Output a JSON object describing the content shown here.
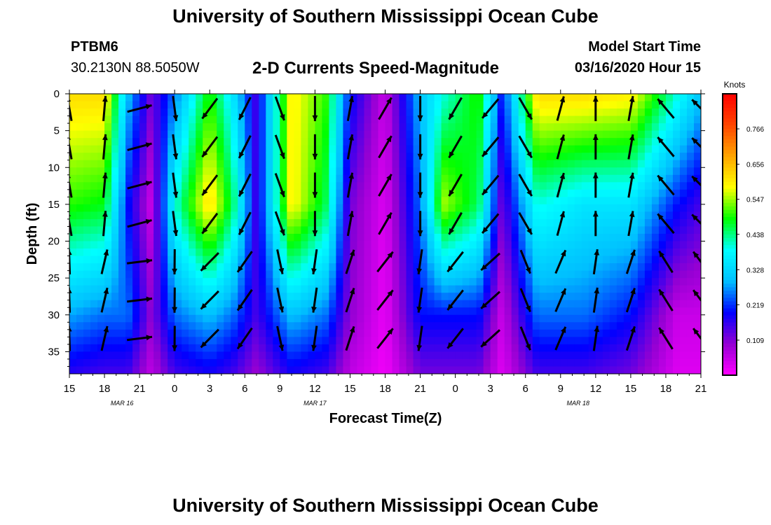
{
  "header": {
    "title": "University of Southern Mississippi Ocean Cube",
    "station_id": "PTBM6",
    "station_coords": "30.2130N 88.5050W",
    "chart_title": "2-D Currents Speed-Magnitude",
    "model_start_label": "Model Start Time",
    "model_start_time": "03/16/2020 Hour 15"
  },
  "footer": {
    "title": "University of Southern Mississippi Ocean Cube"
  },
  "chart_data": {
    "type": "heatmap",
    "title": "2-D Currents Speed-Magnitude",
    "xlabel": "Forecast Time(Z)",
    "ylabel": "Depth (ft)",
    "x_ticks": [
      "15",
      "18",
      "21",
      "0",
      "3",
      "6",
      "9",
      "12",
      "15",
      "18",
      "21",
      "0",
      "3",
      "6",
      "9",
      "12",
      "15",
      "18",
      "21"
    ],
    "x_range_hours": [
      0,
      54
    ],
    "date_labels": [
      {
        "text": "MAR 16",
        "hour": 4.5
      },
      {
        "text": "MAR 17",
        "hour": 21
      },
      {
        "text": "MAR 18",
        "hour": 43.5
      }
    ],
    "y_ticks": [
      0,
      5,
      10,
      15,
      20,
      25,
      30,
      35
    ],
    "ylim": [
      0,
      38
    ],
    "colorbar": {
      "label": "Knots",
      "ticks": [
        "0.766",
        "0.656",
        "0.547",
        "0.438",
        "0.328",
        "0.219",
        "0.109"
      ],
      "range": [
        0,
        0.875
      ],
      "colors": [
        "#ff00ff",
        "#9400d3",
        "#0000ff",
        "#00bfff",
        "#00ffff",
        "#00ff00",
        "#ffff00",
        "#ffa500",
        "#ff4500",
        "#ff0000"
      ]
    },
    "speed_profile": [
      {
        "hour": 0,
        "surface": 0.62,
        "mid": 0.5,
        "bottom": 0.28
      },
      {
        "hour": 3,
        "surface": 0.62,
        "mid": 0.48,
        "bottom": 0.25
      },
      {
        "hour": 5,
        "surface": 0.3,
        "mid": 0.2,
        "bottom": 0.25
      },
      {
        "hour": 7,
        "surface": 0.12,
        "mid": 0.05,
        "bottom": 0.1
      },
      {
        "hour": 9,
        "surface": 0.25,
        "mid": 0.4,
        "bottom": 0.25
      },
      {
        "hour": 12,
        "surface": 0.5,
        "mid": 0.62,
        "bottom": 0.3
      },
      {
        "hour": 14,
        "surface": 0.35,
        "mid": 0.45,
        "bottom": 0.25
      },
      {
        "hour": 16,
        "surface": 0.15,
        "mid": 0.15,
        "bottom": 0.15
      },
      {
        "hour": 19,
        "surface": 0.6,
        "mid": 0.6,
        "bottom": 0.3
      },
      {
        "hour": 22,
        "surface": 0.5,
        "mid": 0.45,
        "bottom": 0.25
      },
      {
        "hour": 24,
        "surface": 0.2,
        "mid": 0.12,
        "bottom": 0.1
      },
      {
        "hour": 27,
        "surface": 0.05,
        "mid": 0.03,
        "bottom": 0.02
      },
      {
        "hour": 30,
        "surface": 0.3,
        "mid": 0.25,
        "bottom": 0.2
      },
      {
        "hour": 32,
        "surface": 0.4,
        "mid": 0.55,
        "bottom": 0.2
      },
      {
        "hour": 35,
        "surface": 0.5,
        "mid": 0.45,
        "bottom": 0.2
      },
      {
        "hour": 37,
        "surface": 0.2,
        "mid": 0.12,
        "bottom": 0.05
      },
      {
        "hour": 40,
        "surface": 0.62,
        "mid": 0.4,
        "bottom": 0.25
      },
      {
        "hour": 44,
        "surface": 0.62,
        "mid": 0.35,
        "bottom": 0.25
      },
      {
        "hour": 48,
        "surface": 0.6,
        "mid": 0.35,
        "bottom": 0.2
      },
      {
        "hour": 52,
        "surface": 0.4,
        "mid": 0.2,
        "bottom": 0.05
      },
      {
        "hour": 54,
        "surface": 0.3,
        "mid": 0.15,
        "bottom": 0.05
      }
    ],
    "vector_direction_deg": [
      {
        "hour": 0,
        "deg": 350
      },
      {
        "hour": 3,
        "deg": 5
      },
      {
        "hour": 6,
        "deg": 75
      },
      {
        "hour": 8,
        "deg": 135
      },
      {
        "hour": 10,
        "deg": 210
      },
      {
        "hour": 13,
        "deg": 220
      },
      {
        "hour": 16,
        "deg": 200
      },
      {
        "hour": 18,
        "deg": 160
      },
      {
        "hour": 21,
        "deg": 180
      },
      {
        "hour": 24,
        "deg": 10
      },
      {
        "hour": 27,
        "deg": 30
      },
      {
        "hour": 30,
        "deg": 180
      },
      {
        "hour": 33,
        "deg": 210
      },
      {
        "hour": 36,
        "deg": 220
      },
      {
        "hour": 39,
        "deg": 150
      },
      {
        "hour": 42,
        "deg": 15
      },
      {
        "hour": 45,
        "deg": 0
      },
      {
        "hour": 48,
        "deg": 10
      },
      {
        "hour": 51,
        "deg": 320
      },
      {
        "hour": 54,
        "deg": 315
      }
    ]
  }
}
